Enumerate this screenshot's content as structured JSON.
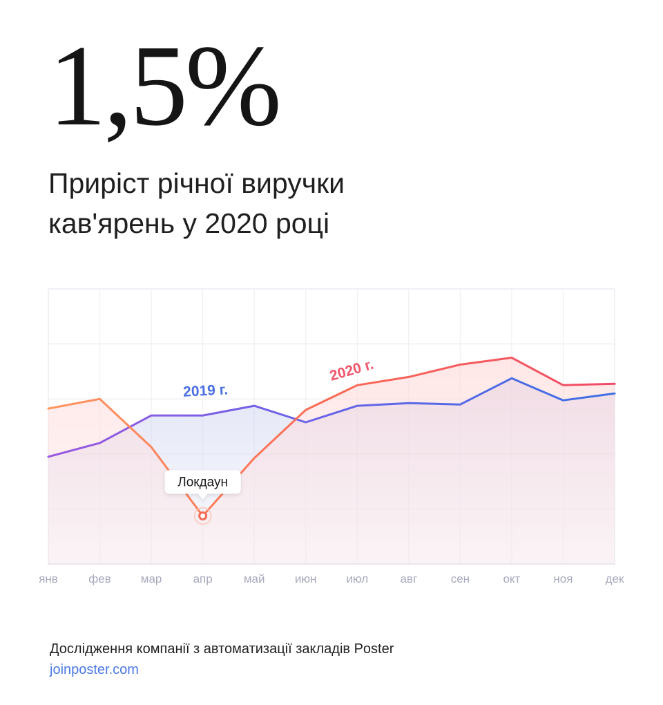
{
  "headline": "1,5%",
  "subtitle": {
    "line1": "Приріст річної виручки",
    "line2": "кав'ярень у 2020 році"
  },
  "footer": {
    "source": "Дослідження компанії з автоматизації закладів Poster",
    "link": "joinposter.com"
  },
  "chart_data": {
    "type": "area",
    "title": "",
    "xlabel": "",
    "ylabel": "",
    "categories": [
      "янв",
      "фев",
      "мар",
      "апр",
      "май",
      "июн",
      "июл",
      "авг",
      "сен",
      "окт",
      "ноя",
      "дек"
    ],
    "ylim": [
      0,
      100
    ],
    "grid": true,
    "series": [
      {
        "name": "2019 г.",
        "color": "#4a6fe3",
        "values": [
          39,
          44,
          54,
          54,
          57.5,
          51.5,
          57.5,
          58.5,
          58,
          67.5,
          59.5,
          62
        ]
      },
      {
        "name": "2020 г.",
        "color": "#f0566a",
        "values": [
          56.5,
          60,
          42.5,
          17.5,
          38.5,
          56,
          65,
          68,
          72.5,
          75,
          65,
          65.5
        ]
      }
    ],
    "annotation": {
      "label": "Локдаун",
      "category": "апр",
      "series": "2020 г."
    }
  }
}
